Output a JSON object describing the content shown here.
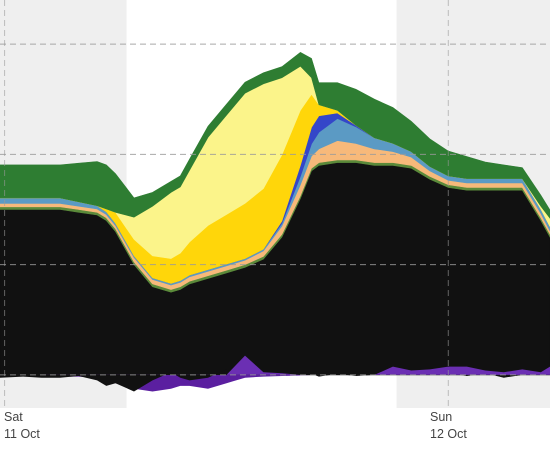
{
  "chart_data": {
    "type": "area",
    "title": "",
    "xlabel": "",
    "ylabel": "",
    "grid": true,
    "x_ticks": [
      {
        "day": "Sat",
        "date": "11 Oct",
        "x": 0
      },
      {
        "day": "Sun",
        "date": "12 Oct",
        "x": 24
      }
    ],
    "x_range": [
      -0.25,
      29.5
    ],
    "y_range": [
      -6,
      68
    ],
    "gridlines_y": [
      0,
      20,
      40,
      60
    ],
    "night_bands": [
      [
        -0.25,
        6.6
      ],
      [
        21.2,
        29.5
      ]
    ],
    "x": [
      -0.25,
      1,
      2,
      3,
      4,
      5,
      5.5,
      6,
      7,
      8,
      9,
      9.5,
      10,
      11,
      12,
      13,
      14,
      15,
      16,
      16.6,
      17,
      18,
      19,
      20,
      21,
      22,
      23,
      24,
      25,
      26,
      27,
      28,
      29,
      29.5
    ],
    "series": [
      {
        "color": "#111111",
        "values": [
          30,
          30,
          30,
          30,
          29.5,
          29,
          28,
          26,
          20,
          16,
          15,
          15.5,
          16.5,
          17.5,
          18.5,
          19.5,
          21,
          25,
          32,
          37,
          38,
          38.5,
          38.5,
          38,
          38,
          37.5,
          35.5,
          34,
          33.5,
          33.5,
          33.5,
          33.5,
          28,
          25
        ]
      },
      {
        "color": "#5b8a3a",
        "values": [
          0.5,
          0.5,
          0.5,
          0.5,
          0.5,
          0.5,
          0.5,
          0.5,
          0.5,
          0.5,
          0.5,
          0.5,
          0.5,
          0.5,
          0.5,
          0.5,
          0.5,
          0.5,
          0.5,
          0.5,
          0.5,
          0.5,
          0.5,
          0.5,
          0.5,
          0.5,
          0.5,
          0.5,
          0.5,
          0.5,
          0.5,
          0.5,
          0.5,
          0.5
        ]
      },
      {
        "color": "#f7b97a",
        "values": [
          0.6,
          0.6,
          0.6,
          0.6,
          0.6,
          0.6,
          0.6,
          0.6,
          0.8,
          0.8,
          0.8,
          0.8,
          0.8,
          0.8,
          0.8,
          0.8,
          1.0,
          1.5,
          2.0,
          2.2,
          2.5,
          3.5,
          3.0,
          2.5,
          2.0,
          1.5,
          1.0,
          0.8,
          0.8,
          0.8,
          0.8,
          0.8,
          0.8,
          0.6
        ]
      },
      {
        "color": "#5b9ac4",
        "values": [
          1.0,
          1.0,
          1.0,
          1.0,
          0.8,
          0.6,
          0.5,
          0.4,
          0.3,
          0.3,
          0.3,
          0.3,
          0.3,
          0.3,
          0.3,
          0.3,
          0.3,
          0.5,
          1.5,
          2.2,
          3.0,
          4.0,
          3.0,
          2.0,
          1.5,
          1.0,
          0.8,
          0.8,
          0.8,
          0.8,
          0.8,
          0.8,
          0.8,
          0.8
        ]
      },
      {
        "color": "#3446c9",
        "values": [
          0,
          0,
          0,
          0,
          0,
          0,
          0,
          0,
          0,
          0,
          0,
          0,
          0,
          0,
          0,
          0,
          0,
          0.4,
          2.0,
          3.0,
          3.0,
          1.0,
          0.3,
          0,
          0,
          0,
          0,
          0,
          0,
          0,
          0,
          0,
          0,
          0
        ]
      },
      {
        "color": "#ffd60a",
        "values": [
          0,
          0,
          0,
          0,
          0,
          0,
          0.5,
          2.0,
          3.0,
          4.0,
          4.5,
          5.0,
          6.0,
          8.0,
          9.0,
          10.0,
          11.0,
          12.0,
          10.0,
          6.0,
          2.0,
          0.5,
          0,
          0,
          0,
          0,
          0,
          0,
          0,
          0,
          0,
          0,
          0,
          0
        ]
      },
      {
        "color": "#fbf48a",
        "values": [
          0,
          0,
          0,
          0,
          0,
          0,
          0,
          0,
          4.0,
          9.0,
          12.0,
          12.0,
          13.0,
          16.0,
          18.0,
          20.0,
          19.0,
          14.0,
          8.0,
          3.0,
          0,
          0,
          0,
          0,
          0,
          0,
          0,
          0,
          0,
          0,
          0,
          0,
          0.5,
          1.5
        ]
      },
      {
        "color": "#2e7d32",
        "values": [
          6.0,
          6.0,
          6.0,
          6.0,
          7.0,
          8.0,
          8.0,
          7.0,
          3.5,
          2.5,
          2.0,
          2.0,
          2.0,
          2.0,
          2.0,
          2.0,
          2.0,
          2.0,
          2.5,
          3.5,
          4.0,
          5.0,
          6.5,
          7.0,
          6.5,
          5.5,
          5.0,
          4.5,
          4.0,
          3.0,
          2.5,
          2.0,
          2.0,
          1.5
        ]
      }
    ],
    "negative_series": [
      {
        "color": "#5b1fa0",
        "values": [
          0,
          0,
          0,
          0.3,
          0.3,
          0.5,
          0.8,
          1.5,
          2.5,
          3.0,
          2.5,
          2.0,
          2.0,
          2.5,
          1.5,
          0.5,
          0.3,
          0.2,
          0.1,
          0,
          0,
          0,
          0,
          0,
          0,
          0,
          0,
          0,
          0,
          0,
          0,
          0,
          0,
          0
        ]
      }
    ],
    "negative_line": {
      "color": "#111111",
      "values": [
        -0.5,
        -0.3,
        -0.5,
        -0.5,
        -0.2,
        -1.0,
        -2.0,
        -1.5,
        -3.0,
        -1.0,
        0.5,
        -0.5,
        -1.0,
        -0.5,
        1.0,
        2.0,
        0.5,
        0.2,
        0.5,
        0.2,
        -0.3,
        0.2,
        -0.2,
        0,
        0.2,
        0.5,
        0.5,
        0.3,
        -0.2,
        0.3,
        -0.5,
        0,
        0.2,
        0.2
      ]
    },
    "positive_line": {
      "color": "#6b2fb3",
      "values": [
        0,
        0,
        0,
        0,
        0,
        0,
        0,
        0,
        0,
        0,
        0,
        0,
        0,
        0,
        0,
        3.5,
        0.5,
        0.3,
        0,
        0,
        0,
        0,
        0,
        0,
        1.5,
        0.8,
        1.0,
        1.5,
        1.5,
        0.8,
        0.5,
        1.0,
        0.5,
        1.5
      ]
    }
  }
}
